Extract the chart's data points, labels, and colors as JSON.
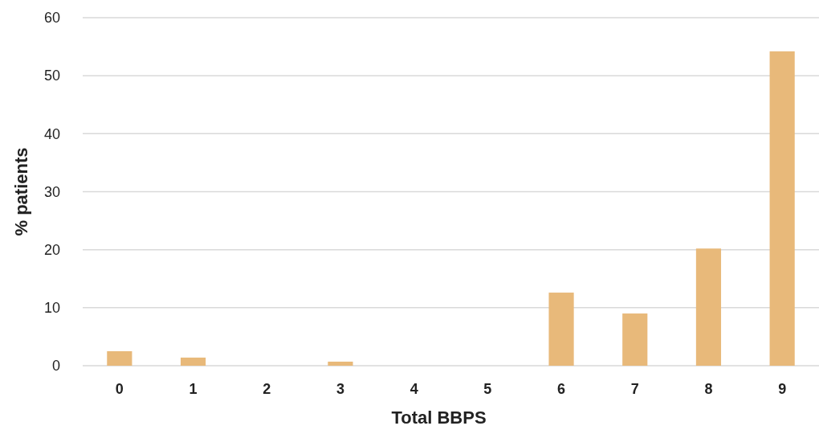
{
  "chart_data": {
    "type": "bar",
    "xlabel": "Total BBPS",
    "ylabel": "% patients",
    "categories": [
      "0",
      "1",
      "2",
      "3",
      "4",
      "5",
      "6",
      "7",
      "8",
      "9"
    ],
    "values": [
      2.5,
      1.4,
      0,
      0.7,
      0,
      0,
      12.6,
      9.0,
      20.2,
      54.2
    ],
    "color": "#e8b97a",
    "ylim": [
      0,
      60
    ],
    "yticks": [
      0,
      10,
      20,
      30,
      40,
      50,
      60
    ],
    "grid": "y"
  }
}
